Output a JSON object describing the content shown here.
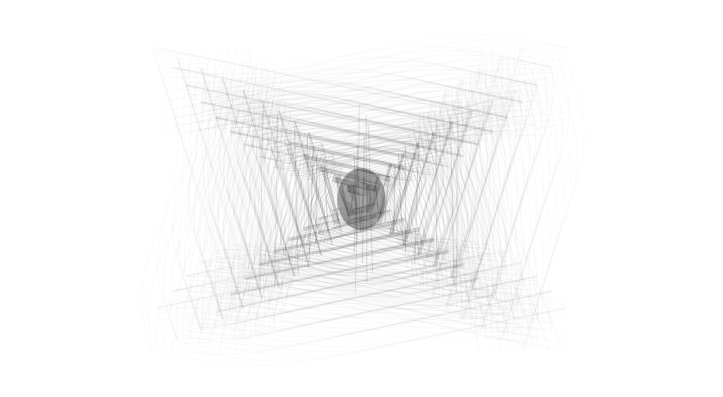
{
  "artwork": {
    "background_color": "#ffffff",
    "stroke_color": "#000000"
  }
}
